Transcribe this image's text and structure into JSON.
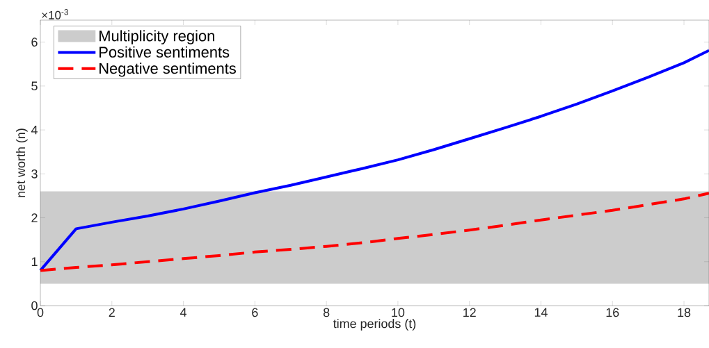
{
  "chart_data": {
    "type": "line",
    "xlabel": "time periods (t)",
    "ylabel": "net worth (n)",
    "annotations": [
      "×10$^{-3}$"
    ],
    "x": [
      0,
      1,
      2,
      3,
      4,
      5,
      6,
      7,
      8,
      9,
      10,
      11,
      12,
      13,
      14,
      15,
      16,
      17,
      18,
      18.7
    ],
    "series": [
      {
        "name": "Positive sentiments",
        "color": "#0000ff",
        "line_style": "solid",
        "values": [
          0.8,
          1.75,
          1.9,
          2.04,
          2.2,
          2.38,
          2.57,
          2.74,
          2.93,
          3.12,
          3.32,
          3.55,
          3.8,
          4.05,
          4.31,
          4.59,
          4.89,
          5.2,
          5.53,
          5.81
        ]
      },
      {
        "name": "Negative sentiments",
        "color": "#ff0000",
        "line_style": "dashed",
        "values": [
          0.8,
          0.87,
          0.93,
          1.0,
          1.07,
          1.14,
          1.22,
          1.28,
          1.35,
          1.43,
          1.53,
          1.62,
          1.72,
          1.83,
          1.95,
          2.06,
          2.17,
          2.3,
          2.43,
          2.56
        ]
      }
    ],
    "bands": [
      {
        "axis": "y",
        "from": 0.5,
        "to": 2.6,
        "label": "Multiplicity region",
        "color": "#cccccc"
      }
    ],
    "xlim": [
      0,
      18.7
    ],
    "ylim": [
      0,
      6.5
    ],
    "xticks": [
      0,
      2,
      4,
      6,
      8,
      10,
      12,
      14,
      16,
      18
    ],
    "yticks": [
      0,
      1,
      2,
      3,
      4,
      5,
      6
    ],
    "legend": "top left",
    "marker": "none"
  }
}
